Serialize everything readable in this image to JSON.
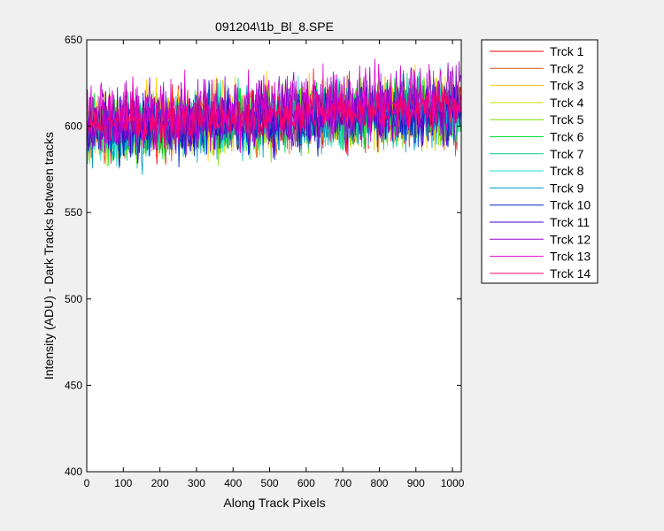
{
  "chart_data": {
    "type": "line",
    "title": "091204\\1b_Bl_8.SPE",
    "xlabel": "Along Track Pixels",
    "ylabel": "Intensity (ADU) - Dark Tracks between tracks",
    "xlim": [
      0,
      1024
    ],
    "ylim": [
      400,
      650
    ],
    "xticks": [
      0,
      100,
      200,
      300,
      400,
      500,
      600,
      700,
      800,
      900,
      1000
    ],
    "yticks": [
      400,
      450,
      500,
      550,
      600,
      650
    ],
    "grid": false,
    "legend_position": "outside-top-right",
    "series": [
      {
        "name": "Trck 1",
        "color": "#ff0000",
        "base": [
          598,
          602,
          604,
          607,
          609,
          610
        ],
        "noise": 9
      },
      {
        "name": "Trck 2",
        "color": "#d95319",
        "base": [
          596,
          600,
          602,
          605,
          607,
          608
        ],
        "noise": 9
      },
      {
        "name": "Trck 3",
        "color": "#ffcc00",
        "base": [
          600,
          603,
          606,
          609,
          611,
          613
        ],
        "noise": 10
      },
      {
        "name": "Trck 4",
        "color": "#ccdd00",
        "base": [
          597,
          601,
          603,
          606,
          608,
          609
        ],
        "noise": 9
      },
      {
        "name": "Trck 5",
        "color": "#77dd00",
        "base": [
          595,
          599,
          601,
          604,
          606,
          607
        ],
        "noise": 9
      },
      {
        "name": "Trck 6",
        "color": "#00dd33",
        "base": [
          596,
          600,
          602,
          605,
          607,
          608
        ],
        "noise": 9
      },
      {
        "name": "Trck 7",
        "color": "#00cc88",
        "base": [
          597,
          601,
          603,
          606,
          608,
          609
        ],
        "noise": 9
      },
      {
        "name": "Trck 8",
        "color": "#22ddcc",
        "base": [
          598,
          602,
          604,
          607,
          609,
          610
        ],
        "noise": 9
      },
      {
        "name": "Trck 9",
        "color": "#0099cc",
        "base": [
          594,
          598,
          600,
          603,
          605,
          606
        ],
        "noise": 9
      },
      {
        "name": "Trck 10",
        "color": "#0022cc",
        "base": [
          596,
          600,
          602,
          605,
          607,
          608
        ],
        "noise": 9
      },
      {
        "name": "Trck 11",
        "color": "#4400cc",
        "base": [
          598,
          602,
          604,
          607,
          609,
          610
        ],
        "noise": 9
      },
      {
        "name": "Trck 12",
        "color": "#9900cc",
        "base": [
          601,
          605,
          607,
          610,
          612,
          613
        ],
        "noise": 10
      },
      {
        "name": "Trck 13",
        "color": "#dd00cc",
        "base": [
          602,
          606,
          608,
          611,
          613,
          614
        ],
        "noise": 10
      },
      {
        "name": "Trck 14",
        "color": "#ff0066",
        "base": [
          600,
          603,
          605,
          608,
          610,
          611
        ],
        "noise": 6
      }
    ]
  }
}
